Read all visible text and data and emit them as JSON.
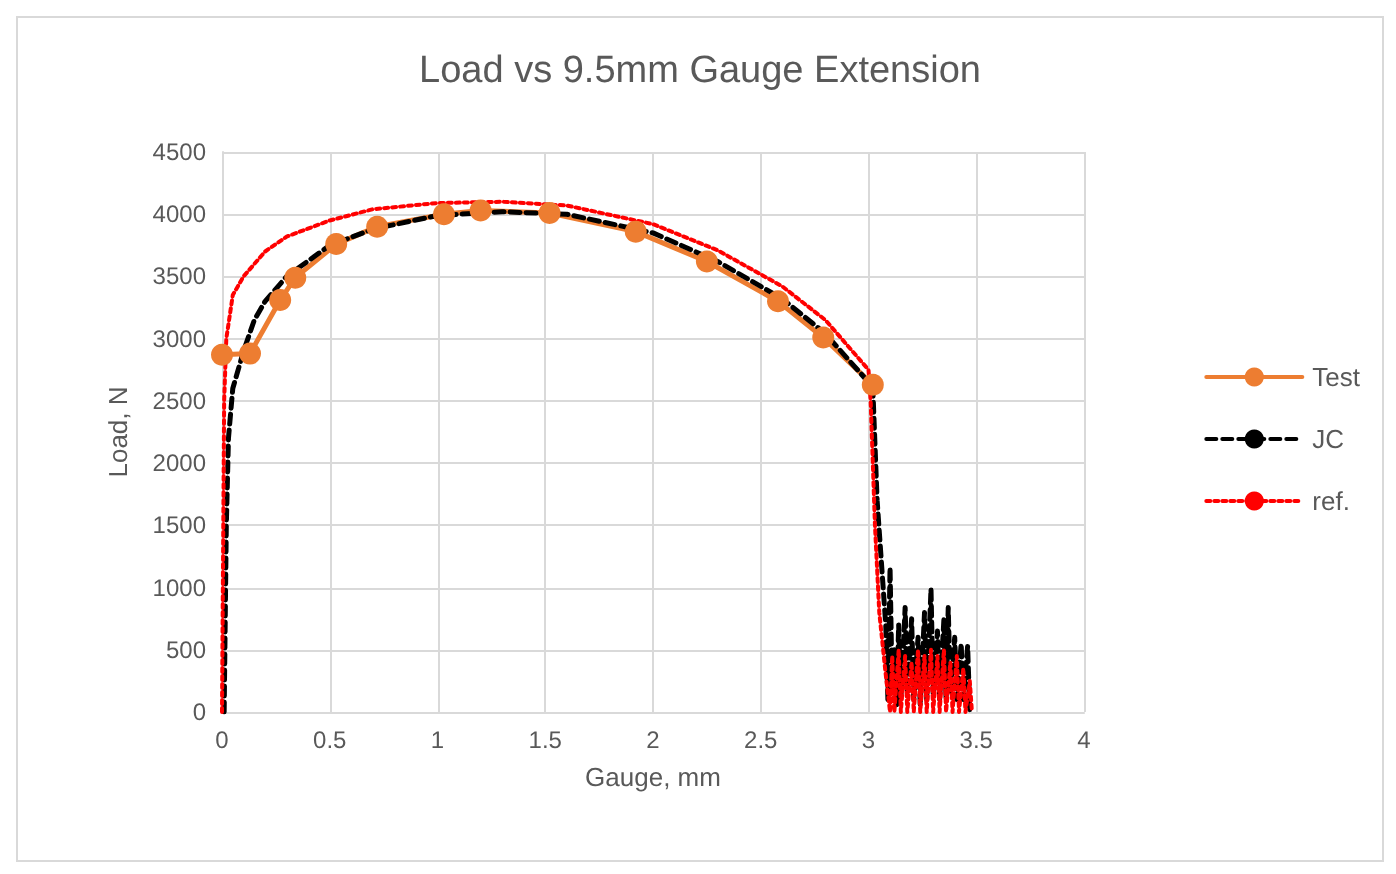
{
  "chart_data": {
    "type": "line",
    "title": "Load vs 9.5mm Gauge Extension",
    "xlabel": "Gauge, mm",
    "ylabel": "Load, N",
    "xlim": [
      0,
      4
    ],
    "xticks": [
      0,
      0.5,
      1,
      1.5,
      2,
      2.5,
      3,
      3.5,
      4
    ],
    "ylim": [
      0,
      4500
    ],
    "yticks": [
      0,
      500,
      1000,
      1500,
      2000,
      2500,
      3000,
      3500,
      4000,
      4500
    ],
    "grid": true,
    "legend": "right",
    "series": [
      {
        "name": "Test",
        "color": "#ed7d31",
        "marker": "circle",
        "line_style": "solid",
        "x": [
          0,
          0.13,
          0.27,
          0.34,
          0.53,
          0.72,
          1.03,
          1.2,
          1.52,
          1.92,
          2.25,
          2.58,
          2.79,
          3.02
        ],
        "values": [
          2870,
          2880,
          3310,
          3490,
          3760,
          3900,
          4000,
          4030,
          4010,
          3860,
          3620,
          3300,
          3010,
          2630
        ]
      },
      {
        "name": "JC",
        "color": "#000000",
        "marker": "none",
        "line_style": "dashed",
        "x": [
          0.01,
          0.02,
          0.03,
          0.05,
          0.1,
          0.15,
          0.2,
          0.3,
          0.5,
          0.7,
          1.0,
          1.3,
          1.6,
          2.0,
          2.3,
          2.6,
          2.8,
          3.0,
          3.02,
          3.04,
          3.06,
          3.08,
          3.09,
          3.1,
          3.11,
          3.12,
          3.13,
          3.14,
          3.15,
          3.17,
          3.18,
          3.2,
          3.21,
          3.23,
          3.24,
          3.26,
          3.27,
          3.29,
          3.3,
          3.32,
          3.33,
          3.35,
          3.36,
          3.37,
          3.38,
          3.4,
          3.41,
          3.43,
          3.44,
          3.46,
          3.47
        ],
        "values": [
          0,
          1500,
          2200,
          2600,
          2900,
          3150,
          3300,
          3500,
          3750,
          3880,
          3990,
          4020,
          4000,
          3850,
          3620,
          3320,
          3040,
          2650,
          2600,
          1700,
          1200,
          700,
          100,
          1160,
          150,
          500,
          50,
          700,
          100,
          840,
          150,
          750,
          100,
          600,
          50,
          800,
          100,
          990,
          150,
          650,
          100,
          750,
          100,
          840,
          150,
          600,
          100,
          550,
          100,
          530,
          0
        ]
      },
      {
        "name": "ref.",
        "color": "#ff0000",
        "marker": "none",
        "line_style": "dotted",
        "x": [
          0,
          0.01,
          0.02,
          0.05,
          0.1,
          0.2,
          0.3,
          0.5,
          0.7,
          1.0,
          1.3,
          1.6,
          2.0,
          2.3,
          2.6,
          2.8,
          3.0,
          3.01,
          3.03,
          3.05,
          3.08,
          3.1,
          3.11,
          3.12,
          3.14,
          3.15,
          3.17,
          3.18,
          3.2,
          3.21,
          3.23,
          3.24,
          3.26,
          3.27,
          3.29,
          3.3,
          3.32,
          3.33,
          3.35,
          3.36,
          3.38,
          3.39,
          3.41,
          3.42,
          3.44,
          3.45,
          3.47,
          3.48
        ],
        "values": [
          0,
          2500,
          3000,
          3350,
          3500,
          3700,
          3820,
          3950,
          4040,
          4090,
          4100,
          4070,
          3920,
          3710,
          3420,
          3150,
          2750,
          2500,
          1500,
          800,
          300,
          0,
          450,
          0,
          500,
          0,
          450,
          0,
          400,
          0,
          500,
          0,
          450,
          0,
          500,
          0,
          450,
          0,
          500,
          0,
          400,
          0,
          450,
          0,
          350,
          0,
          250,
          0
        ]
      }
    ]
  }
}
